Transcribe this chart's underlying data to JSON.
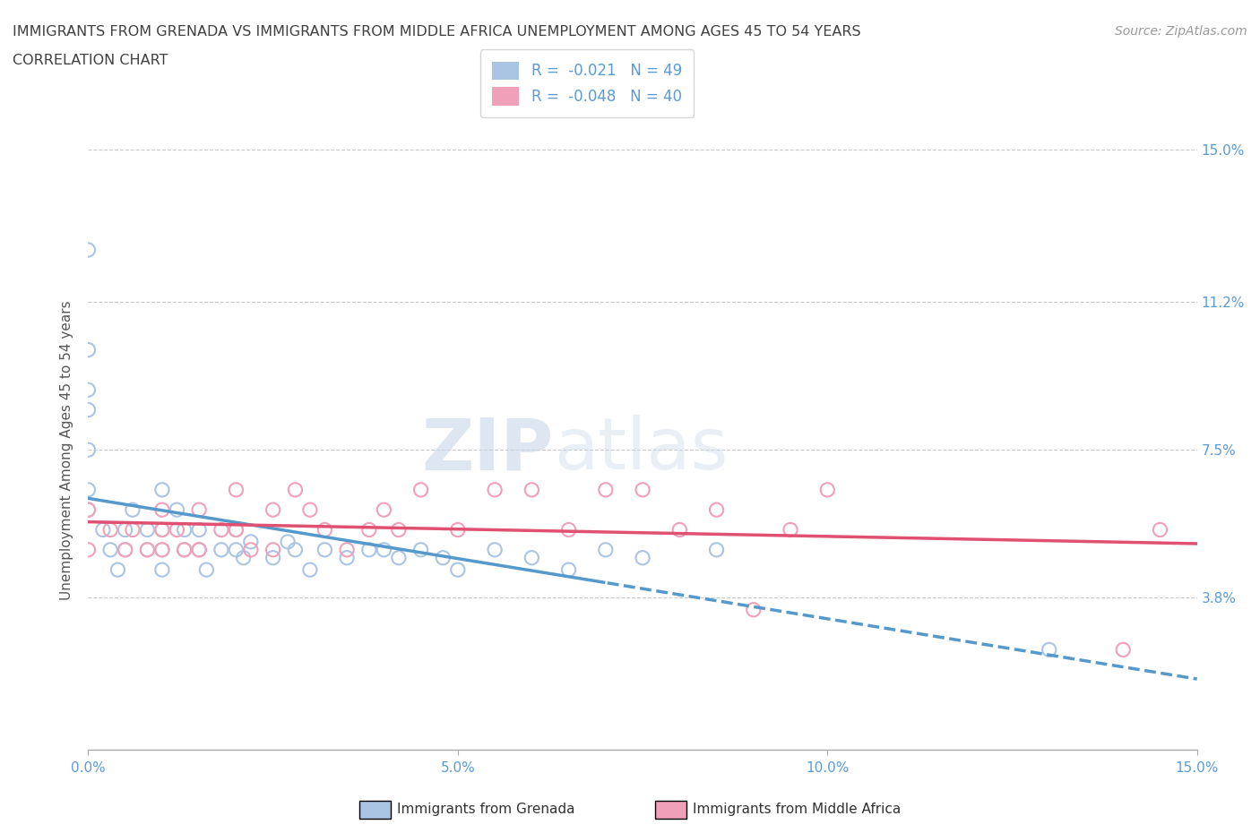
{
  "title_line1": "IMMIGRANTS FROM GRENADA VS IMMIGRANTS FROM MIDDLE AFRICA UNEMPLOYMENT AMONG AGES 45 TO 54 YEARS",
  "title_line2": "CORRELATION CHART",
  "ylabel": "Unemployment Among Ages 45 to 54 years",
  "source_text": "Source: ZipAtlas.com",
  "xlim": [
    0,
    0.15
  ],
  "ylim": [
    0,
    0.15
  ],
  "xtick_values": [
    0.0,
    0.05,
    0.1,
    0.15
  ],
  "xtick_labels": [
    "0.0%",
    "5.0%",
    "10.0%",
    "15.0%"
  ],
  "ytick_values": [
    0.038,
    0.075,
    0.112,
    0.15
  ],
  "ytick_labels": [
    "3.8%",
    "7.5%",
    "11.2%",
    "15.0%"
  ],
  "grenada_R": "-0.021",
  "grenada_N": "49",
  "middle_africa_R": "-0.048",
  "middle_africa_N": "40",
  "grenada_color": "#aac4e4",
  "middle_africa_color": "#f0a0b8",
  "grenada_line_color": "#5599cc",
  "middle_africa_line_color": "#e05070",
  "legend_label_grenada": "Immigrants from Grenada",
  "legend_label_middle_africa": "Immigrants from Middle Africa",
  "watermark_zip": "ZIP",
  "watermark_atlas": "atlas",
  "background_color": "#ffffff",
  "grid_color": "#bbbbbb",
  "title_color": "#404040",
  "axis_label_color": "#5b9bd5",
  "grenada_x": [
    0.0,
    0.0,
    0.0,
    0.0,
    0.0,
    0.0,
    0.0,
    0.002,
    0.003,
    0.004,
    0.005,
    0.005,
    0.006,
    0.008,
    0.008,
    0.01,
    0.01,
    0.01,
    0.01,
    0.012,
    0.013,
    0.013,
    0.015,
    0.015,
    0.016,
    0.018,
    0.02,
    0.02,
    0.021,
    0.022,
    0.025,
    0.027,
    0.028,
    0.03,
    0.032,
    0.035,
    0.038,
    0.04,
    0.042,
    0.045,
    0.048,
    0.05,
    0.055,
    0.06,
    0.065,
    0.07,
    0.075,
    0.085,
    0.13
  ],
  "grenada_y": [
    0.125,
    0.1,
    0.09,
    0.085,
    0.075,
    0.065,
    0.06,
    0.055,
    0.05,
    0.045,
    0.05,
    0.055,
    0.06,
    0.055,
    0.05,
    0.065,
    0.055,
    0.05,
    0.045,
    0.06,
    0.055,
    0.05,
    0.055,
    0.05,
    0.045,
    0.05,
    0.055,
    0.05,
    0.048,
    0.052,
    0.048,
    0.052,
    0.05,
    0.045,
    0.05,
    0.048,
    0.05,
    0.05,
    0.048,
    0.05,
    0.048,
    0.045,
    0.05,
    0.048,
    0.045,
    0.05,
    0.048,
    0.05,
    0.025
  ],
  "middle_africa_x": [
    0.0,
    0.0,
    0.003,
    0.005,
    0.006,
    0.008,
    0.01,
    0.01,
    0.01,
    0.012,
    0.013,
    0.015,
    0.015,
    0.018,
    0.02,
    0.02,
    0.022,
    0.025,
    0.025,
    0.028,
    0.03,
    0.032,
    0.035,
    0.038,
    0.04,
    0.042,
    0.045,
    0.05,
    0.055,
    0.06,
    0.065,
    0.07,
    0.075,
    0.08,
    0.085,
    0.09,
    0.095,
    0.1,
    0.14,
    0.145
  ],
  "middle_africa_y": [
    0.06,
    0.05,
    0.055,
    0.05,
    0.055,
    0.05,
    0.06,
    0.055,
    0.05,
    0.055,
    0.05,
    0.06,
    0.05,
    0.055,
    0.065,
    0.055,
    0.05,
    0.06,
    0.05,
    0.065,
    0.06,
    0.055,
    0.05,
    0.055,
    0.06,
    0.055,
    0.065,
    0.055,
    0.065,
    0.065,
    0.055,
    0.065,
    0.065,
    0.055,
    0.06,
    0.035,
    0.055,
    0.065,
    0.025,
    0.055
  ]
}
